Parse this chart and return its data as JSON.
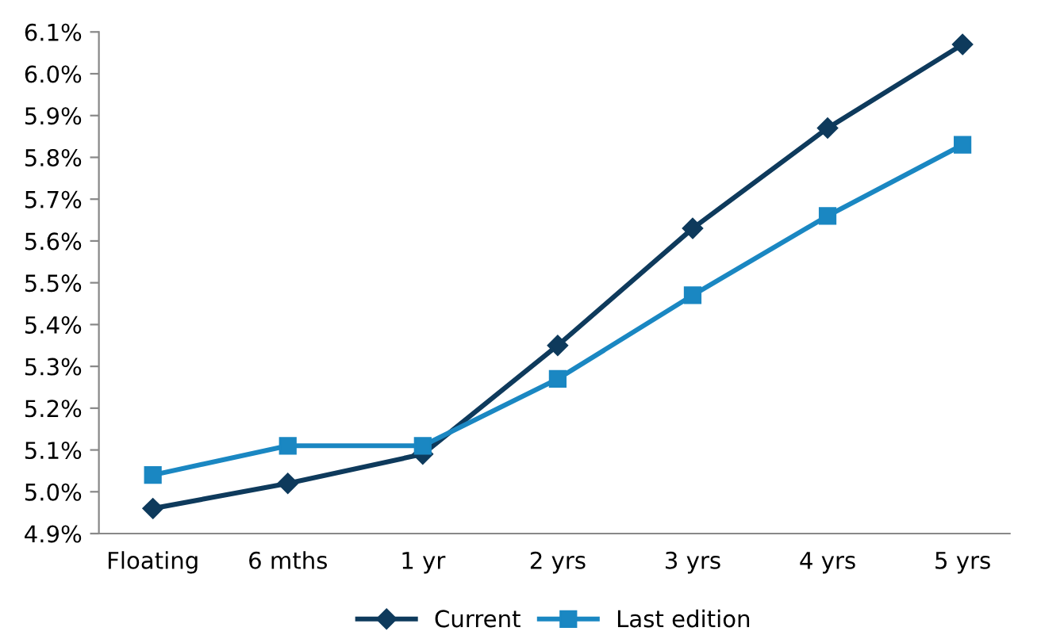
{
  "chart_data": {
    "type": "line",
    "categories": [
      "Floating",
      "6 mths",
      "1 yr",
      "2 yrs",
      "3 yrs",
      "4 yrs",
      "5 yrs"
    ],
    "series": [
      {
        "name": "Current",
        "color": "#0e3a5c",
        "marker": "diamond",
        "values": [
          4.96,
          5.02,
          5.09,
          5.35,
          5.63,
          5.87,
          6.07
        ]
      },
      {
        "name": "Last edition",
        "color": "#1a87c2",
        "marker": "square",
        "values": [
          5.04,
          5.11,
          5.11,
          5.27,
          5.47,
          5.66,
          5.83
        ]
      }
    ],
    "ylim": [
      4.9,
      6.1
    ],
    "yticks": [
      {
        "value": 4.9,
        "label": "4.9%"
      },
      {
        "value": 5.0,
        "label": "5.0%"
      },
      {
        "value": 5.1,
        "label": "5.1%"
      },
      {
        "value": 5.2,
        "label": "5.2%"
      },
      {
        "value": 5.3,
        "label": "5.3%"
      },
      {
        "value": 5.4,
        "label": "5.4%"
      },
      {
        "value": 5.5,
        "label": "5.5%"
      },
      {
        "value": 5.6,
        "label": "5.6%"
      },
      {
        "value": 5.7,
        "label": "5.7%"
      },
      {
        "value": 5.8,
        "label": "5.8%"
      },
      {
        "value": 5.9,
        "label": "5.9%"
      },
      {
        "value": 6.0,
        "label": "6.0%"
      },
      {
        "value": 6.1,
        "label": "6.1%"
      }
    ],
    "grid": false,
    "legend": "bottom",
    "line_style": "solid"
  }
}
